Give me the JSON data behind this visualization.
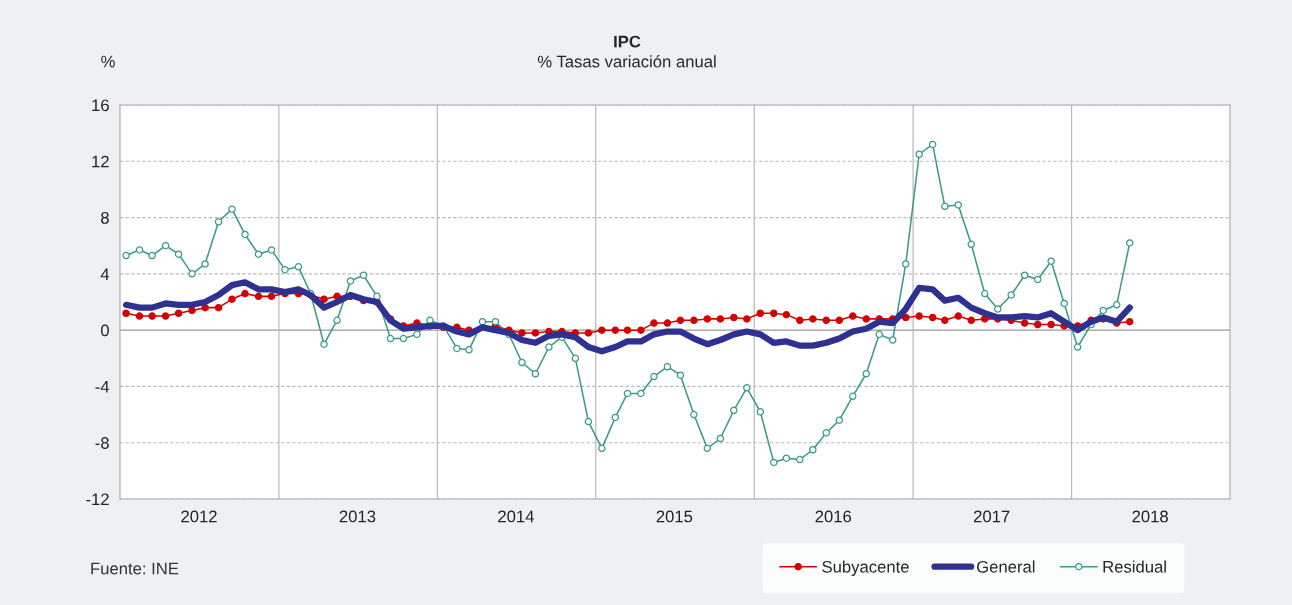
{
  "chart_data": {
    "type": "line",
    "title": "IPC",
    "subtitle": "% Tasas variación anual",
    "ylabel": "%",
    "annotations": [
      "Fuente: INE"
    ],
    "x": [
      "2012-01-15",
      "2012-02-15",
      "2012-03-15",
      "2012-04-15",
      "2012-05-15",
      "2012-06-15",
      "2012-07-15",
      "2012-08-15",
      "2012-09-15",
      "2012-10-15",
      "2012-11-15",
      "2012-12-15",
      "2013-01-15",
      "2013-02-15",
      "2013-03-15",
      "2013-04-15",
      "2013-05-15",
      "2013-06-15",
      "2013-07-15",
      "2013-08-15",
      "2013-09-15",
      "2013-10-15",
      "2013-11-15",
      "2013-12-15",
      "2014-01-15",
      "2014-02-15",
      "2014-03-15",
      "2014-04-15",
      "2014-05-15",
      "2014-06-15",
      "2014-07-15",
      "2014-08-15",
      "2014-09-15",
      "2014-10-15",
      "2014-11-15",
      "2014-12-15",
      "2015-01-15",
      "2015-02-15",
      "2015-03-15",
      "2015-04-15",
      "2015-05-15",
      "2015-06-15",
      "2015-07-15",
      "2015-08-15",
      "2015-09-15",
      "2015-10-15",
      "2015-11-15",
      "2015-12-15",
      "2016-01-15",
      "2016-02-15",
      "2016-03-15",
      "2016-04-15",
      "2016-05-15",
      "2016-06-15",
      "2016-07-15",
      "2016-08-15",
      "2016-09-15",
      "2016-10-15",
      "2016-11-15",
      "2016-12-15",
      "2017-01-15",
      "2017-02-15",
      "2017-03-15",
      "2017-04-15",
      "2017-05-15",
      "2017-06-15",
      "2017-07-15",
      "2017-08-15",
      "2017-09-15",
      "2017-10-15",
      "2017-11-15",
      "2017-12-15",
      "2018-01-15",
      "2018-02-15",
      "2018-03-15",
      "2018-04-15",
      "2018-05-15"
    ],
    "series": [
      {
        "name": "Subyacente",
        "color": "#d40000",
        "marker": "circle",
        "values": [
          1.2,
          1.0,
          1.0,
          1.0,
          1.2,
          1.4,
          1.6,
          1.6,
          2.2,
          2.6,
          2.4,
          2.4,
          2.6,
          2.6,
          2.5,
          2.2,
          2.4,
          2.4,
          2.1,
          2.0,
          0.8,
          0.3,
          0.5,
          0.3,
          0.2,
          0.2,
          0.0,
          null,
          0.3,
          0.0,
          -0.2,
          -0.2,
          -0.1,
          -0.1,
          -0.2,
          -0.2,
          0.0,
          0.0,
          0.0,
          0.0,
          0.5,
          0.5,
          0.7,
          0.7,
          0.8,
          0.8,
          0.9,
          0.8,
          1.2,
          1.2,
          1.1,
          0.7,
          0.8,
          0.7,
          0.7,
          1.0,
          0.8,
          0.8,
          0.8,
          0.9,
          1.0,
          0.9,
          0.7,
          1.0,
          0.7,
          0.8,
          0.8,
          0.7,
          0.5,
          0.4,
          0.4,
          0.3,
          0.3,
          0.7,
          0.8,
          0.5,
          0.6
        ]
      },
      {
        "name": "General",
        "color": "#2e3192",
        "marker": "none",
        "values": [
          1.8,
          1.6,
          1.6,
          1.9,
          1.8,
          1.8,
          2.0,
          2.5,
          3.2,
          3.4,
          2.9,
          2.9,
          2.7,
          2.9,
          2.5,
          1.6,
          2.0,
          2.5,
          2.2,
          2.0,
          0.7,
          0.1,
          0.2,
          0.3,
          0.3,
          -0.1,
          -0.3,
          0.2,
          0.0,
          -0.2,
          -0.7,
          -0.9,
          -0.4,
          -0.3,
          -0.5,
          -1.2,
          -1.5,
          -1.2,
          -0.8,
          -0.8,
          -0.3,
          -0.1,
          -0.1,
          -0.6,
          -1.0,
          -0.7,
          -0.3,
          -0.1,
          -0.3,
          -0.9,
          -0.8,
          -1.1,
          -1.1,
          -0.9,
          -0.6,
          -0.1,
          0.1,
          0.6,
          0.5,
          1.5,
          3.0,
          2.9,
          2.1,
          2.3,
          1.6,
          1.2,
          0.9,
          0.9,
          1.0,
          0.9,
          1.2,
          0.6,
          0.0,
          0.6,
          0.9,
          0.6,
          1.6
        ]
      },
      {
        "name": "Residual",
        "color": "#3a9a86",
        "marker": "circle",
        "values": [
          5.3,
          5.7,
          5.3,
          6.0,
          5.4,
          4.0,
          4.7,
          7.7,
          8.6,
          6.8,
          5.4,
          5.7,
          4.3,
          4.5,
          2.6,
          -1.0,
          0.7,
          3.5,
          3.9,
          2.4,
          -0.6,
          -0.6,
          -0.3,
          0.7,
          0.3,
          -1.3,
          -1.4,
          0.6,
          0.6,
          -0.3,
          -2.3,
          -3.1,
          -1.2,
          -0.5,
          -2.0,
          -6.5,
          -8.4,
          -6.2,
          -4.5,
          -4.5,
          -3.3,
          -2.6,
          -3.2,
          -6.0,
          -8.4,
          -7.7,
          -5.7,
          -4.1,
          -5.8,
          -9.4,
          -9.1,
          -9.2,
          -8.5,
          -7.3,
          -6.4,
          -4.7,
          -3.1,
          -0.3,
          -0.7,
          4.7,
          12.5,
          13.2,
          8.8,
          8.9,
          6.1,
          2.6,
          1.5,
          2.5,
          3.9,
          3.6,
          4.9,
          1.9,
          -1.2,
          0.4,
          1.4,
          1.8,
          6.2
        ]
      }
    ],
    "xlim": [
      "2012-01-01",
      "2019-01-01"
    ],
    "xticks": [
      {
        "value": "2013-01-01",
        "label": null
      },
      {
        "value": "2014-01-01",
        "label": null
      },
      {
        "value": "2015-01-01",
        "label": null
      },
      {
        "value": "2016-01-01",
        "label": null
      },
      {
        "value": "2017-01-01",
        "label": null
      },
      {
        "value": "2018-01-01",
        "label": null
      },
      {
        "value": "2012-07-01",
        "label": "2012"
      },
      {
        "value": "2013-07-01",
        "label": "2013"
      },
      {
        "value": "2014-07-01",
        "label": "2014"
      },
      {
        "value": "2015-07-01",
        "label": "2015"
      },
      {
        "value": "2016-07-01",
        "label": "2016"
      },
      {
        "value": "2017-07-01",
        "label": "2017"
      },
      {
        "value": "2018-07-01",
        "label": "2018"
      }
    ],
    "ylim": [
      -12,
      16
    ],
    "yticks": [
      -12,
      -8,
      -4,
      0,
      4,
      8,
      12,
      16
    ],
    "grid": true,
    "legend": "bottom right",
    "line_style": "solid"
  }
}
